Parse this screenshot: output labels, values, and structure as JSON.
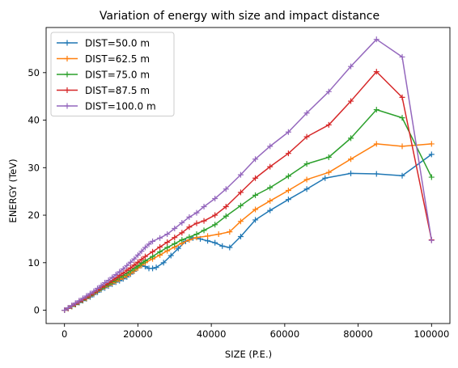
{
  "chart_data": {
    "type": "line",
    "title": "Variation of energy with size and impact distance",
    "xlabel": "SIZE (P.E.)",
    "ylabel": "ENERGY (TeV)",
    "xlim": [
      -5000,
      105000
    ],
    "ylim": [
      -2.8,
      59.5
    ],
    "xticks": [
      0,
      20000,
      40000,
      60000,
      80000,
      100000
    ],
    "yticks": [
      0,
      10,
      20,
      30,
      40,
      50
    ],
    "grid": false,
    "legend": "upper-left",
    "marker": "plus",
    "series": [
      {
        "name": "DIST=50.0 m",
        "color": "#1f77b4",
        "points": [
          [
            0,
            0
          ],
          [
            1000,
            0.4
          ],
          [
            2000,
            0.8
          ],
          [
            3000,
            1.2
          ],
          [
            4000,
            1.6
          ],
          [
            5000,
            2.0
          ],
          [
            6000,
            2.4
          ],
          [
            7000,
            2.8
          ],
          [
            8000,
            3.3
          ],
          [
            9000,
            3.8
          ],
          [
            10000,
            4.3
          ],
          [
            11000,
            4.7
          ],
          [
            12000,
            5.1
          ],
          [
            13000,
            5.5
          ],
          [
            14000,
            5.9
          ],
          [
            15000,
            6.2
          ],
          [
            16000,
            6.6
          ],
          [
            17000,
            7.0
          ],
          [
            18000,
            7.6
          ],
          [
            19000,
            8.2
          ],
          [
            20000,
            8.9
          ],
          [
            21000,
            9.4
          ],
          [
            22000,
            9.2
          ],
          [
            23000,
            8.8
          ],
          [
            24000,
            8.8
          ],
          [
            25000,
            9.0
          ],
          [
            27000,
            10.0
          ],
          [
            29000,
            11.5
          ],
          [
            31000,
            13.0
          ],
          [
            33000,
            14.5
          ],
          [
            35000,
            15.2
          ],
          [
            37000,
            15.0
          ],
          [
            39000,
            14.6
          ],
          [
            41000,
            14.2
          ],
          [
            43000,
            13.5
          ],
          [
            45000,
            13.2
          ],
          [
            48000,
            15.5
          ],
          [
            52000,
            19.0
          ],
          [
            56000,
            21.0
          ],
          [
            61000,
            23.3
          ],
          [
            66000,
            25.5
          ],
          [
            71000,
            27.8
          ],
          [
            78000,
            28.8
          ],
          [
            85000,
            28.7
          ],
          [
            92000,
            28.3
          ],
          [
            100000,
            32.8
          ]
        ]
      },
      {
        "name": "DIST=62.5 m",
        "color": "#ff7f0e",
        "points": [
          [
            0,
            0
          ],
          [
            1000,
            0.4
          ],
          [
            2000,
            0.8
          ],
          [
            3000,
            1.2
          ],
          [
            4000,
            1.7
          ],
          [
            5000,
            2.1
          ],
          [
            6000,
            2.5
          ],
          [
            7000,
            3.0
          ],
          [
            8000,
            3.5
          ],
          [
            9000,
            4.0
          ],
          [
            10000,
            4.5
          ],
          [
            11000,
            4.9
          ],
          [
            12000,
            5.3
          ],
          [
            13000,
            5.7
          ],
          [
            14000,
            6.1
          ],
          [
            15000,
            6.5
          ],
          [
            16000,
            6.9
          ],
          [
            17000,
            7.3
          ],
          [
            18000,
            7.8
          ],
          [
            19000,
            8.3
          ],
          [
            20000,
            8.9
          ],
          [
            21000,
            9.5
          ],
          [
            22000,
            10.0
          ],
          [
            24000,
            10.8
          ],
          [
            26000,
            11.6
          ],
          [
            28000,
            12.5
          ],
          [
            30000,
            13.3
          ],
          [
            32000,
            14.1
          ],
          [
            34000,
            14.8
          ],
          [
            36000,
            15.3
          ],
          [
            39000,
            15.6
          ],
          [
            42000,
            16.0
          ],
          [
            45000,
            16.5
          ],
          [
            48000,
            18.7
          ],
          [
            52000,
            21.2
          ],
          [
            56000,
            23.0
          ],
          [
            61000,
            25.2
          ],
          [
            66000,
            27.5
          ],
          [
            72000,
            29.0
          ],
          [
            78000,
            31.8
          ],
          [
            85000,
            35.0
          ],
          [
            92000,
            34.5
          ],
          [
            100000,
            35.0
          ]
        ]
      },
      {
        "name": "DIST=75.0 m",
        "color": "#2ca02c",
        "points": [
          [
            0,
            0
          ],
          [
            1000,
            0.4
          ],
          [
            2000,
            0.8
          ],
          [
            3000,
            1.2
          ],
          [
            4000,
            1.7
          ],
          [
            5000,
            2.1
          ],
          [
            6000,
            2.6
          ],
          [
            7000,
            3.1
          ],
          [
            8000,
            3.6
          ],
          [
            9000,
            4.1
          ],
          [
            10000,
            4.6
          ],
          [
            11000,
            5.1
          ],
          [
            12000,
            5.5
          ],
          [
            13000,
            6.0
          ],
          [
            14000,
            6.4
          ],
          [
            15000,
            6.9
          ],
          [
            16000,
            7.3
          ],
          [
            17000,
            7.8
          ],
          [
            18000,
            8.3
          ],
          [
            19000,
            8.8
          ],
          [
            20000,
            9.3
          ],
          [
            21000,
            9.9
          ],
          [
            22000,
            10.4
          ],
          [
            24000,
            11.3
          ],
          [
            26000,
            12.3
          ],
          [
            28000,
            13.2
          ],
          [
            30000,
            14.0
          ],
          [
            32000,
            14.8
          ],
          [
            34000,
            15.4
          ],
          [
            36000,
            16.0
          ],
          [
            38000,
            16.8
          ],
          [
            41000,
            18.0
          ],
          [
            44000,
            19.8
          ],
          [
            48000,
            22.0
          ],
          [
            52000,
            24.2
          ],
          [
            56000,
            25.8
          ],
          [
            61000,
            28.2
          ],
          [
            66000,
            30.8
          ],
          [
            72000,
            32.2
          ],
          [
            78000,
            36.2
          ],
          [
            85000,
            42.2
          ],
          [
            92000,
            40.5
          ],
          [
            100000,
            28.0
          ]
        ]
      },
      {
        "name": "DIST=87.5 m",
        "color": "#d62728",
        "points": [
          [
            0,
            0
          ],
          [
            1000,
            0.4
          ],
          [
            2000,
            0.9
          ],
          [
            3000,
            1.3
          ],
          [
            4000,
            1.8
          ],
          [
            5000,
            2.2
          ],
          [
            6000,
            2.7
          ],
          [
            7000,
            3.2
          ],
          [
            8000,
            3.7
          ],
          [
            9000,
            4.2
          ],
          [
            10000,
            4.8
          ],
          [
            11000,
            5.3
          ],
          [
            12000,
            5.8
          ],
          [
            13000,
            6.3
          ],
          [
            14000,
            6.8
          ],
          [
            15000,
            7.3
          ],
          [
            16000,
            7.8
          ],
          [
            17000,
            8.4
          ],
          [
            18000,
            8.9
          ],
          [
            19000,
            9.5
          ],
          [
            20000,
            10.1
          ],
          [
            21000,
            10.7
          ],
          [
            22000,
            11.3
          ],
          [
            24000,
            12.3
          ],
          [
            26000,
            13.3
          ],
          [
            28000,
            14.3
          ],
          [
            30000,
            15.3
          ],
          [
            32000,
            16.3
          ],
          [
            34000,
            17.5
          ],
          [
            36000,
            18.3
          ],
          [
            38000,
            18.8
          ],
          [
            41000,
            20.0
          ],
          [
            44000,
            21.8
          ],
          [
            48000,
            24.8
          ],
          [
            52000,
            27.8
          ],
          [
            56000,
            30.2
          ],
          [
            61000,
            33.0
          ],
          [
            66000,
            36.5
          ],
          [
            72000,
            39.0
          ],
          [
            78000,
            44.0
          ],
          [
            85000,
            50.2
          ],
          [
            92000,
            44.8
          ],
          [
            100000,
            14.8
          ]
        ]
      },
      {
        "name": "DIST=100.0 m",
        "color": "#9467bd",
        "points": [
          [
            0,
            0
          ],
          [
            1000,
            0.5
          ],
          [
            2000,
            1.0
          ],
          [
            3000,
            1.5
          ],
          [
            4000,
            2.0
          ],
          [
            5000,
            2.5
          ],
          [
            6000,
            3.0
          ],
          [
            7000,
            3.5
          ],
          [
            8000,
            4.0
          ],
          [
            9000,
            4.6
          ],
          [
            10000,
            5.2
          ],
          [
            11000,
            5.8
          ],
          [
            12000,
            6.3
          ],
          [
            13000,
            6.9
          ],
          [
            14000,
            7.5
          ],
          [
            15000,
            8.1
          ],
          [
            16000,
            8.7
          ],
          [
            17000,
            9.4
          ],
          [
            18000,
            10.1
          ],
          [
            19000,
            10.8
          ],
          [
            20000,
            11.6
          ],
          [
            21000,
            12.4
          ],
          [
            22000,
            13.2
          ],
          [
            23000,
            13.9
          ],
          [
            24000,
            14.5
          ],
          [
            26000,
            15.2
          ],
          [
            28000,
            16.0
          ],
          [
            30000,
            17.2
          ],
          [
            32000,
            18.4
          ],
          [
            34000,
            19.6
          ],
          [
            36000,
            20.5
          ],
          [
            38000,
            21.8
          ],
          [
            41000,
            23.5
          ],
          [
            44000,
            25.5
          ],
          [
            48000,
            28.5
          ],
          [
            52000,
            31.8
          ],
          [
            56000,
            34.5
          ],
          [
            61000,
            37.5
          ],
          [
            66000,
            41.5
          ],
          [
            72000,
            46.0
          ],
          [
            78000,
            51.3
          ],
          [
            85000,
            57.0
          ],
          [
            92000,
            53.3
          ],
          [
            100000,
            14.7
          ]
        ]
      }
    ]
  }
}
